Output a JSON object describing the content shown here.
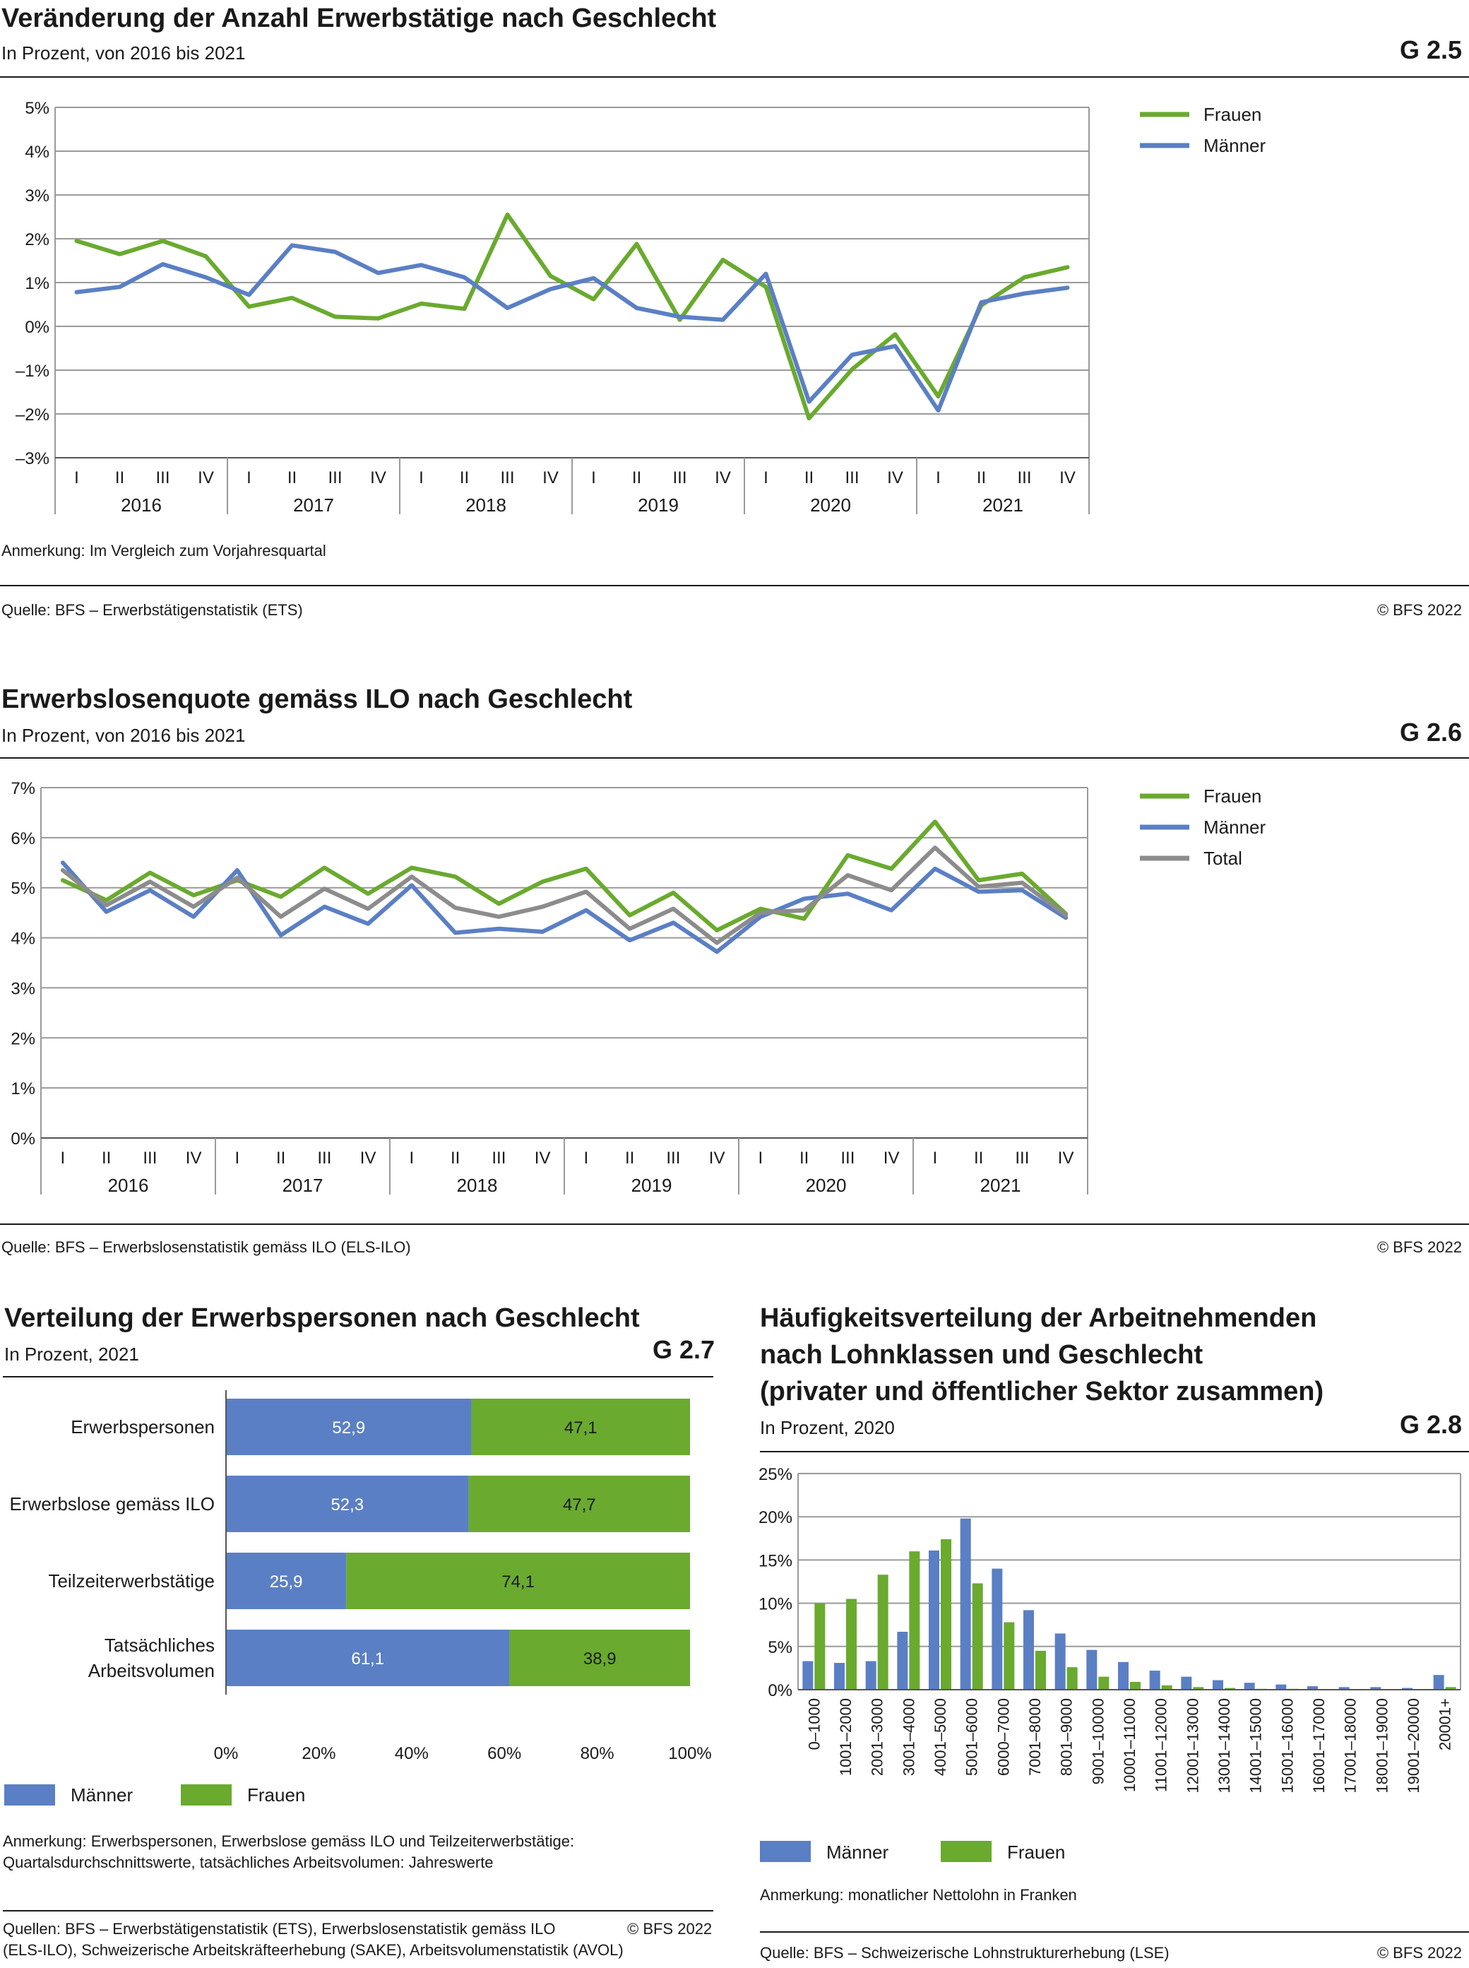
{
  "g25": {
    "title": "Veränderung der Anzahl Erwerbstätige nach Geschlecht",
    "subtitle": "In Prozent, von 2016 bis 2021",
    "code": "G 2.5",
    "note": "Anmerkung: Im Vergleich zum Vorjahresquartal",
    "source": "Quelle: BFS – Erwerbstätigenstatistik (ETS)",
    "copyright": "© BFS 2022"
  },
  "g26": {
    "title": "Erwerbslosenquote gemäss ILO nach Geschlecht",
    "subtitle": "In Prozent, von 2016 bis 2021",
    "code": "G 2.6",
    "source": "Quelle: BFS – Erwerbslosenstatistik gemäss ILO (ELS-ILO)",
    "copyright": "© BFS 2022"
  },
  "g27": {
    "title": "Verteilung der Erwerbspersonen nach Geschlecht",
    "subtitle": "In Prozent, 2021",
    "code": "G 2.7",
    "note_line1": "Anmerkung: Erwerbspersonen, Erwerbslose gemäss ILO und Teilzeiterwerbstätige:",
    "note_line2": "Quartalsdurchschnittswerte, tatsächliches Arbeitsvolumen: Jahreswerte",
    "source_line1": "Quellen: BFS – Erwerbstätigenstatistik (ETS), Erwerbslosenstatistik gemäss ILO",
    "source_line2": "(ELS-ILO), Schweizerische Arbeitskräfteerhebung (SAKE), Arbeitsvolumenstatistik (AVOL)",
    "copyright": "© BFS 2022"
  },
  "g28": {
    "title_line1": "Häufigkeitsverteilung der Arbeitnehmenden",
    "title_line2": "nach Lohnklassen und Geschlecht",
    "title_line3": "(privater und öffentlicher Sektor zusammen)",
    "subtitle": "In Prozent, 2020",
    "code": "G 2.8",
    "note": "Anmerkung: monatlicher Nettolohn in Franken",
    "source": "Quelle: BFS – Schweizerische Lohnstrukturerhebung (LSE)",
    "copyright": "© BFS 2022"
  },
  "colors": {
    "frauen": "#6aaa2f",
    "maenner": "#5b7fc4",
    "total": "#8c8c8c",
    "grid": "#9a9a9a"
  },
  "chart_data": [
    {
      "id": "g25",
      "type": "line",
      "quarters": [
        "I",
        "II",
        "III",
        "IV"
      ],
      "years": [
        "2016",
        "2017",
        "2018",
        "2019",
        "2020",
        "2021"
      ],
      "y_ticks": [
        "5%",
        "4%",
        "3%",
        "2%",
        "1%",
        "0%",
        "–1%",
        "–2%",
        "–3%"
      ],
      "ylim": [
        -3,
        5
      ],
      "grid": true,
      "legend": "top-right",
      "series": [
        {
          "name": "Frauen",
          "color_key": "frauen",
          "values": [
            1.95,
            1.65,
            1.95,
            1.6,
            0.45,
            0.65,
            0.22,
            0.18,
            0.52,
            0.4,
            2.55,
            1.15,
            0.62,
            1.88,
            0.15,
            1.52,
            0.9,
            -2.1,
            -0.98,
            -0.18,
            -1.6,
            0.48,
            1.12,
            1.35
          ]
        },
        {
          "name": "Männer",
          "color_key": "maenner",
          "values": [
            0.78,
            0.9,
            1.42,
            1.12,
            0.72,
            1.85,
            1.7,
            1.22,
            1.4,
            1.12,
            0.42,
            0.85,
            1.1,
            0.42,
            0.22,
            0.15,
            1.2,
            -1.72,
            -0.65,
            -0.45,
            -1.92,
            0.55,
            0.75,
            0.88
          ]
        }
      ]
    },
    {
      "id": "g26",
      "type": "line",
      "quarters": [
        "I",
        "II",
        "III",
        "IV"
      ],
      "years": [
        "2016",
        "2017",
        "2018",
        "2019",
        "2020",
        "2021"
      ],
      "y_ticks": [
        "7%",
        "6%",
        "5%",
        "4%",
        "3%",
        "2%",
        "1%",
        "0%"
      ],
      "ylim": [
        0,
        7
      ],
      "grid": true,
      "legend": "top-right",
      "series": [
        {
          "name": "Frauen",
          "color_key": "frauen",
          "values": [
            5.15,
            4.75,
            5.3,
            4.85,
            5.15,
            4.82,
            5.4,
            4.88,
            5.4,
            5.22,
            4.68,
            5.12,
            5.38,
            4.45,
            4.9,
            4.15,
            4.58,
            4.38,
            5.65,
            5.38,
            6.32,
            5.15,
            5.28,
            4.48
          ]
        },
        {
          "name": "Männer",
          "color_key": "maenner",
          "values": [
            5.5,
            4.52,
            4.95,
            4.42,
            5.35,
            4.05,
            4.62,
            4.28,
            5.05,
            4.1,
            4.18,
            4.12,
            4.55,
            3.95,
            4.3,
            3.72,
            4.42,
            4.78,
            4.88,
            4.55,
            5.38,
            4.92,
            4.95,
            4.4
          ]
        },
        {
          "name": "Total",
          "color_key": "total",
          "values": [
            5.35,
            4.65,
            5.12,
            4.62,
            5.2,
            4.42,
            4.98,
            4.58,
            5.22,
            4.6,
            4.42,
            4.62,
            4.92,
            4.18,
            4.58,
            3.9,
            4.5,
            4.55,
            5.25,
            4.95,
            5.8,
            5.02,
            5.1,
            4.45
          ]
        }
      ]
    },
    {
      "id": "g27",
      "type": "bar",
      "orientation": "horizontal-stacked",
      "categories": [
        "Erwerbspersonen",
        "Erwerbslose gemäss ILO",
        "Teilzeiterwerbstätige",
        "Tatsächliches|Arbeitsvolumen"
      ],
      "x_ticks": [
        "0%",
        "20%",
        "40%",
        "60%",
        "80%",
        "100%"
      ],
      "xlim": [
        0,
        100
      ],
      "legend": "bottom-left",
      "series": [
        {
          "name": "Männer",
          "color_key": "maenner",
          "values": [
            52.9,
            52.3,
            25.9,
            61.1
          ],
          "labels": [
            "52,9",
            "52,3",
            "25,9",
            "61,1"
          ]
        },
        {
          "name": "Frauen",
          "color_key": "frauen",
          "values": [
            47.1,
            47.7,
            74.1,
            38.9
          ],
          "labels": [
            "47,1",
            "47,7",
            "74,1",
            "38,9"
          ]
        }
      ]
    },
    {
      "id": "g28",
      "type": "bar",
      "categories": [
        "0–1000",
        "1001–2000",
        "2001–3000",
        "3001–4000",
        "4001–5000",
        "5001–6000",
        "6000–7000",
        "7001–8000",
        "8001–9000",
        "9001–10000",
        "10001–11000",
        "11001–12000",
        "12001–13000",
        "13001–14000",
        "14001–15000",
        "15001–16000",
        "16001–17000",
        "17001–18000",
        "18001–19000",
        "19001–20000",
        "20001+"
      ],
      "y_ticks": [
        "25%",
        "20%",
        "15%",
        "10%",
        "5%",
        "0%"
      ],
      "ylim": [
        0,
        25
      ],
      "grid": true,
      "legend": "bottom-left",
      "series": [
        {
          "name": "Männer",
          "color_key": "maenner",
          "values": [
            3.3,
            3.1,
            3.3,
            6.7,
            16.1,
            19.8,
            14.0,
            9.2,
            6.5,
            4.6,
            3.2,
            2.2,
            1.5,
            1.1,
            0.8,
            0.6,
            0.4,
            0.3,
            0.3,
            0.2,
            1.7
          ]
        },
        {
          "name": "Frauen",
          "color_key": "frauen",
          "values": [
            10.0,
            10.5,
            13.3,
            16.0,
            17.4,
            12.3,
            7.8,
            4.5,
            2.6,
            1.5,
            0.9,
            0.5,
            0.3,
            0.2,
            0.1,
            0.1,
            0.05,
            0.05,
            0.05,
            0.03,
            0.3
          ]
        }
      ]
    }
  ]
}
